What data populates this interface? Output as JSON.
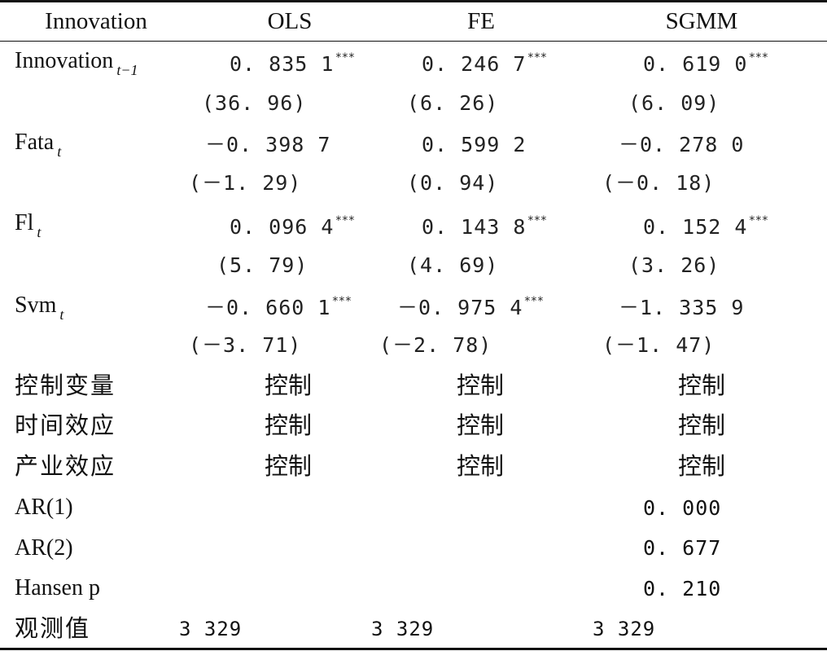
{
  "table": {
    "headers": [
      "Innovation",
      "OLS",
      "FE",
      "SGMM"
    ],
    "rows": [
      {
        "label": "Innovation",
        "label_sub": "t−1",
        "coef": [
          "0. 835 1",
          "0. 246 7",
          "0. 619 0"
        ],
        "stars": [
          "***",
          "***",
          "***"
        ],
        "tstat": [
          "(36. 96)",
          "(6. 26)",
          "(6. 09)"
        ]
      },
      {
        "label": "Fata",
        "label_sub": "t",
        "coef": [
          "－0. 398 7",
          "0. 599 2",
          "－0. 278 0"
        ],
        "stars": [
          "",
          "",
          ""
        ],
        "tstat": [
          "(－1. 29)",
          "(0. 94)",
          "(－0. 18)"
        ]
      },
      {
        "label": "Fl",
        "label_sub": "t",
        "coef": [
          "0. 096 4",
          "0. 143 8",
          "0. 152 4"
        ],
        "stars": [
          "***",
          "***",
          "***"
        ],
        "tstat": [
          "(5. 79)",
          "(4. 69)",
          "(3. 26)"
        ]
      },
      {
        "label": "Svm",
        "label_sub": "t",
        "coef": [
          "－0. 660 1",
          "－0. 975 4",
          "－1. 335 9"
        ],
        "stars": [
          "***",
          "***",
          ""
        ],
        "tstat": [
          "(－3. 71)",
          "(－2. 78)",
          "(－1. 47)"
        ]
      }
    ],
    "controls": [
      {
        "label": "控制变量",
        "values": [
          "控制",
          "控制",
          "控制"
        ]
      },
      {
        "label": "时间效应",
        "values": [
          "控制",
          "控制",
          "控制"
        ]
      },
      {
        "label": "产业效应",
        "values": [
          "控制",
          "控制",
          "控制"
        ]
      }
    ],
    "tests": [
      {
        "label": "AR(1)",
        "value": "0. 000"
      },
      {
        "label": "AR(2)",
        "value": "0. 677"
      },
      {
        "label": "Hansen p",
        "value": "0. 210"
      }
    ],
    "observations": {
      "label": "观测值",
      "values": [
        "3 329",
        "3 329",
        "3 329"
      ]
    }
  }
}
